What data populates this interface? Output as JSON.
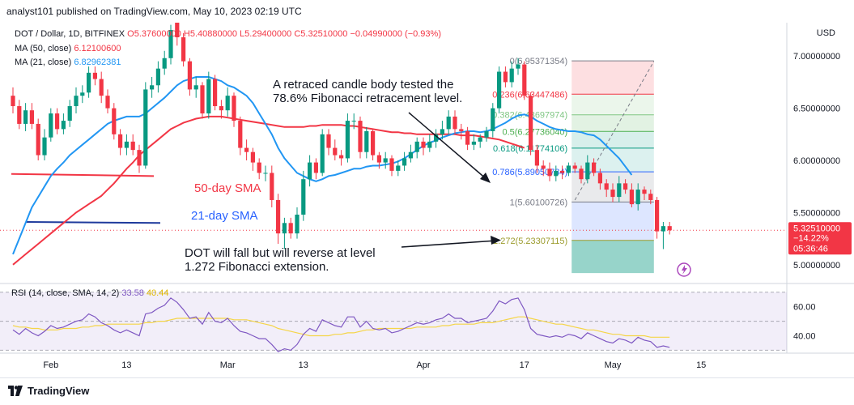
{
  "header": {
    "publisher": "analyst101 published on TradingView.com, May 10, 2023 02:19 UTC"
  },
  "ohlc": {
    "symbol": "DOT / Dollar, 1D, BITFINEX",
    "open": "O5.37600000",
    "high": "H5.40880000",
    "low": "L5.29400000",
    "close": "C5.32510000",
    "change": "−0.04990000 (−0.93%)"
  },
  "ma50": {
    "label": "MA (50, close)",
    "value": "6.12100600"
  },
  "ma21": {
    "label": "MA (21, close)",
    "value": "6.82962381"
  },
  "rsi_legend": {
    "label": "RSI (14, close, SMA, 14, 2)",
    "v1": "33.58",
    "v2": "40.44"
  },
  "price_axis": {
    "unit": "USD",
    "ticks": [
      "7.00000000",
      "6.50000000",
      "6.00000000",
      "5.50000000",
      "5.00000000"
    ],
    "current_price": "5.32510000",
    "current_change": "−14.22%",
    "countdown": "05:36:46"
  },
  "rsi_axis": {
    "ticks": [
      "60.00",
      "40.00"
    ]
  },
  "time_axis": {
    "ticks": [
      "Feb",
      "13",
      "Mar",
      "13",
      "Apr",
      "17",
      "May",
      "15"
    ]
  },
  "annotations": {
    "retrace_l1": "A retraced candle body tested the",
    "retrace_l2": "78.6% Fibonacci retracement level.",
    "sma50": "50-day SMA",
    "sma21": "21-day SMA",
    "fall_l1": "DOT  will fall but will reverse at level",
    "fall_l2": "1.272 Fibonacci extension."
  },
  "fib_levels": [
    {
      "label": "0(6.95371354)",
      "price": 6.95371354,
      "color": "#787b86"
    },
    {
      "label": "0.236(6.63447486)",
      "price": 6.63447486,
      "color": "#f23645"
    },
    {
      "label": "0.382(6.43697974)",
      "price": 6.43697974,
      "color": "#81c784"
    },
    {
      "label": "0.5(6.27736040)",
      "price": 6.2773604,
      "color": "#4caf50"
    },
    {
      "label": "0.618(6.11774106)",
      "price": 6.11774106,
      "color": "#089981"
    },
    {
      "label": "0.786(5.89050784)",
      "price": 5.89050784,
      "color": "#2962ff"
    },
    {
      "label": "1(5.60100726)",
      "price": 5.60100726,
      "color": "#787b86"
    },
    {
      "label": "1.272(5.23307115)",
      "price": 5.23307115,
      "color": "#9c9c2e"
    }
  ],
  "footer": {
    "brand": "TradingView"
  },
  "colors": {
    "up": "#089981",
    "down": "#f23645",
    "ma21": "#2196f3",
    "ma50": "#f23645",
    "rsi": "#7e57c2",
    "rsi_sma": "#f5d547"
  },
  "chart_data": {
    "type": "candlestick",
    "title": "DOT / Dollar, 1D, BITFINEX",
    "ylim": [
      4.82,
      7.32
    ],
    "rsi_ylim": [
      28,
      76
    ],
    "dates": [
      "2023-01-26",
      "2023-01-27",
      "2023-01-28",
      "2023-01-29",
      "2023-01-30",
      "2023-01-31",
      "2023-02-01",
      "2023-02-02",
      "2023-02-03",
      "2023-02-04",
      "2023-02-05",
      "2023-02-06",
      "2023-02-07",
      "2023-02-08",
      "2023-02-09",
      "2023-02-10",
      "2023-02-11",
      "2023-02-12",
      "2023-02-13",
      "2023-02-14",
      "2023-02-15",
      "2023-02-16",
      "2023-02-17",
      "2023-02-18",
      "2023-02-19",
      "2023-02-20",
      "2023-02-21",
      "2023-02-22",
      "2023-02-23",
      "2023-02-24",
      "2023-02-25",
      "2023-02-26",
      "2023-02-27",
      "2023-02-28",
      "2023-03-01",
      "2023-03-02",
      "2023-03-03",
      "2023-03-04",
      "2023-03-05",
      "2023-03-06",
      "2023-03-07",
      "2023-03-08",
      "2023-03-09",
      "2023-03-10",
      "2023-03-11",
      "2023-03-12",
      "2023-03-13",
      "2023-03-14",
      "2023-03-15",
      "2023-03-16",
      "2023-03-17",
      "2023-03-18",
      "2023-03-19",
      "2023-03-20",
      "2023-03-21",
      "2023-03-22",
      "2023-03-23",
      "2023-03-24",
      "2023-03-25",
      "2023-03-26",
      "2023-03-27",
      "2023-03-28",
      "2023-03-29",
      "2023-03-30",
      "2023-03-31",
      "2023-04-01",
      "2023-04-02",
      "2023-04-03",
      "2023-04-04",
      "2023-04-05",
      "2023-04-06",
      "2023-04-07",
      "2023-04-08",
      "2023-04-09",
      "2023-04-10",
      "2023-04-11",
      "2023-04-12",
      "2023-04-13",
      "2023-04-14",
      "2023-04-15",
      "2023-04-16",
      "2023-04-17",
      "2023-04-18",
      "2023-04-19",
      "2023-04-20",
      "2023-04-21",
      "2023-04-22",
      "2023-04-23",
      "2023-04-24",
      "2023-04-25",
      "2023-04-26",
      "2023-04-27",
      "2023-04-28",
      "2023-04-29",
      "2023-04-30",
      "2023-05-01",
      "2023-05-02",
      "2023-05-03",
      "2023-05-04",
      "2023-05-05",
      "2023-05-06",
      "2023-05-07",
      "2023-05-08",
      "2023-05-09",
      "2023-05-10"
    ],
    "open": [
      6.62,
      6.52,
      6.35,
      6.48,
      6.35,
      6.05,
      6.22,
      6.45,
      6.3,
      6.38,
      6.52,
      6.62,
      6.65,
      6.84,
      6.78,
      6.62,
      6.5,
      6.25,
      6.12,
      6.18,
      6.1,
      5.95,
      6.68,
      6.72,
      6.88,
      6.98,
      7.32,
      7.18,
      6.95,
      6.68,
      6.72,
      6.45,
      6.78,
      6.52,
      6.48,
      6.62,
      6.38,
      6.12,
      6.08,
      5.98,
      5.88,
      5.88,
      5.62,
      5.3,
      5.4,
      5.3,
      5.48,
      5.82,
      5.98,
      5.88,
      6.25,
      6.12,
      6.05,
      6.02,
      6.38,
      6.38,
      6.08,
      6.28,
      6.05,
      5.98,
      6.02,
      5.9,
      5.95,
      6.02,
      6.08,
      6.18,
      6.12,
      6.18,
      6.25,
      6.3,
      6.42,
      6.3,
      6.28,
      6.15,
      6.18,
      6.22,
      6.28,
      6.5,
      6.85,
      6.75,
      6.88,
      6.92,
      6.62,
      6.1,
      5.95,
      5.92,
      5.85,
      5.9,
      5.88,
      5.95,
      5.92,
      5.82,
      5.98,
      5.88,
      5.78,
      5.72,
      5.65,
      5.78,
      5.72,
      5.58,
      5.72,
      5.68,
      5.62,
      5.32,
      5.37
    ],
    "close": [
      6.52,
      6.35,
      6.48,
      6.35,
      6.05,
      6.22,
      6.45,
      6.3,
      6.38,
      6.52,
      6.62,
      6.65,
      6.84,
      6.78,
      6.62,
      6.5,
      6.25,
      6.12,
      6.18,
      6.1,
      5.95,
      6.68,
      6.72,
      6.88,
      6.98,
      7.25,
      7.18,
      6.95,
      6.68,
      6.72,
      6.45,
      6.78,
      6.52,
      6.48,
      6.62,
      6.38,
      6.12,
      6.08,
      5.98,
      5.88,
      5.88,
      5.62,
      5.3,
      5.4,
      5.3,
      5.48,
      5.82,
      5.98,
      5.88,
      6.25,
      6.12,
      6.05,
      6.02,
      6.38,
      6.38,
      6.08,
      6.28,
      6.05,
      5.98,
      6.02,
      5.9,
      5.95,
      6.02,
      6.08,
      6.18,
      6.12,
      6.18,
      6.25,
      6.3,
      6.42,
      6.3,
      6.28,
      6.15,
      6.18,
      6.22,
      6.28,
      6.5,
      6.85,
      6.75,
      6.88,
      6.92,
      6.62,
      6.1,
      5.95,
      5.92,
      5.85,
      5.9,
      5.88,
      5.95,
      5.92,
      5.82,
      5.98,
      5.88,
      5.78,
      5.72,
      5.65,
      5.78,
      5.72,
      5.58,
      5.72,
      5.68,
      5.62,
      5.32,
      5.37,
      5.33
    ],
    "high": [
      6.7,
      6.58,
      6.55,
      6.55,
      6.4,
      6.3,
      6.5,
      6.5,
      6.45,
      6.58,
      6.7,
      6.72,
      6.9,
      6.9,
      6.85,
      6.68,
      6.55,
      6.3,
      6.25,
      6.25,
      6.15,
      6.75,
      6.8,
      6.95,
      7.05,
      7.3,
      7.35,
      7.22,
      6.98,
      6.8,
      6.75,
      6.85,
      6.82,
      6.58,
      6.7,
      6.65,
      6.42,
      6.2,
      6.12,
      6.02,
      5.95,
      5.95,
      5.68,
      5.45,
      5.45,
      5.55,
      5.9,
      6.05,
      6.02,
      6.3,
      6.3,
      6.2,
      6.1,
      6.45,
      6.45,
      6.42,
      6.32,
      6.3,
      6.08,
      6.08,
      6.05,
      6.0,
      6.08,
      6.15,
      6.22,
      6.22,
      6.25,
      6.3,
      6.38,
      6.48,
      6.48,
      6.35,
      6.32,
      6.25,
      6.25,
      6.32,
      6.55,
      6.9,
      6.9,
      6.95,
      6.98,
      6.95,
      6.65,
      6.15,
      6.0,
      5.98,
      5.95,
      5.95,
      5.98,
      5.98,
      5.95,
      6.05,
      6.02,
      5.92,
      5.82,
      5.78,
      5.85,
      5.82,
      5.78,
      5.78,
      5.75,
      5.72,
      5.65,
      5.41,
      5.41
    ],
    "low": [
      6.45,
      6.3,
      6.28,
      6.3,
      6.0,
      6.0,
      6.18,
      6.25,
      6.25,
      6.32,
      6.45,
      6.55,
      6.6,
      6.72,
      6.55,
      6.45,
      6.2,
      6.05,
      6.05,
      6.05,
      5.88,
      5.92,
      6.6,
      6.65,
      6.82,
      6.92,
      7.1,
      6.9,
      6.62,
      6.6,
      6.4,
      6.4,
      6.48,
      6.4,
      6.42,
      6.32,
      6.05,
      6.0,
      5.9,
      5.82,
      5.8,
      5.55,
      5.2,
      5.15,
      5.25,
      5.25,
      5.42,
      5.75,
      5.82,
      5.85,
      6.05,
      6.0,
      5.95,
      5.98,
      6.3,
      6.02,
      6.02,
      6.0,
      5.92,
      5.92,
      5.85,
      5.85,
      5.9,
      5.98,
      6.02,
      6.05,
      6.08,
      6.12,
      6.2,
      6.25,
      6.25,
      6.2,
      6.1,
      6.1,
      6.12,
      6.18,
      6.22,
      6.45,
      6.7,
      6.7,
      6.82,
      6.58,
      6.05,
      5.88,
      5.85,
      5.8,
      5.8,
      5.82,
      5.85,
      5.88,
      5.78,
      5.78,
      5.85,
      5.72,
      5.65,
      5.6,
      5.6,
      5.68,
      5.55,
      5.52,
      5.62,
      5.58,
      5.25,
      5.15,
      5.29
    ],
    "ma21": [
      5.1,
      5.25,
      5.4,
      5.55,
      5.65,
      5.75,
      5.85,
      5.92,
      5.98,
      6.05,
      6.1,
      6.15,
      6.2,
      6.25,
      6.3,
      6.35,
      6.38,
      6.4,
      6.42,
      6.42,
      6.42,
      6.45,
      6.5,
      6.55,
      6.6,
      6.66,
      6.72,
      6.76,
      6.78,
      6.8,
      6.8,
      6.8,
      6.78,
      6.76,
      6.72,
      6.7,
      6.66,
      6.62,
      6.55,
      6.45,
      6.35,
      6.25,
      6.12,
      6.02,
      5.95,
      5.88,
      5.85,
      5.82,
      5.8,
      5.82,
      5.85,
      5.86,
      5.88,
      5.9,
      5.92,
      5.92,
      5.94,
      5.95,
      5.95,
      5.96,
      5.97,
      5.99,
      6.02,
      6.06,
      6.1,
      6.14,
      6.17,
      6.19,
      6.22,
      6.24,
      6.26,
      6.27,
      6.28,
      6.28,
      6.27,
      6.28,
      6.3,
      6.33,
      6.36,
      6.4,
      6.43,
      6.44,
      6.42,
      6.38,
      6.35,
      6.32,
      6.3,
      6.29,
      6.28,
      6.28,
      6.27,
      6.25,
      6.24,
      6.2,
      6.14,
      6.08,
      6.02,
      5.94,
      5.86
    ],
    "ma50": [
      5.0,
      5.05,
      5.1,
      5.15,
      5.2,
      5.25,
      5.3,
      5.35,
      5.4,
      5.45,
      5.5,
      5.54,
      5.58,
      5.62,
      5.66,
      5.72,
      5.78,
      5.85,
      5.92,
      5.98,
      6.05,
      6.1,
      6.15,
      6.2,
      6.25,
      6.3,
      6.33,
      6.36,
      6.38,
      6.4,
      6.41,
      6.42,
      6.42,
      6.42,
      6.41,
      6.4,
      6.39,
      6.38,
      6.37,
      6.36,
      6.35,
      6.34,
      6.33,
      6.32,
      6.32,
      6.32,
      6.32,
      6.33,
      6.33,
      6.34,
      6.34,
      6.34,
      6.34,
      6.33,
      6.33,
      6.32,
      6.31,
      6.3,
      6.29,
      6.28,
      6.27,
      6.27,
      6.26,
      6.26,
      6.25,
      6.25,
      6.25,
      6.25,
      6.25,
      6.25,
      6.25,
      6.24,
      6.24,
      6.24,
      6.23,
      6.22,
      6.21,
      6.2,
      6.18,
      6.16,
      6.14,
      6.12
    ],
    "rsi": [
      44,
      41,
      45,
      42,
      40,
      43,
      47,
      45,
      46,
      48,
      50,
      51,
      55,
      53,
      49,
      47,
      44,
      42,
      44,
      42,
      40,
      55,
      56,
      59,
      61,
      66,
      63,
      58,
      52,
      53,
      48,
      56,
      50,
      49,
      52,
      47,
      43,
      42,
      40,
      38,
      38,
      34,
      29,
      31,
      30,
      34,
      41,
      45,
      43,
      51,
      49,
      47,
      46,
      53,
      53,
      46,
      50,
      45,
      44,
      45,
      42,
      43,
      45,
      47,
      49,
      48,
      49,
      51,
      52,
      55,
      52,
      52,
      49,
      50,
      51,
      52,
      57,
      64,
      62,
      65,
      66,
      58,
      45,
      41,
      40,
      39,
      40,
      39,
      41,
      40,
      38,
      42,
      40,
      38,
      36,
      35,
      38,
      37,
      35,
      39,
      37,
      36,
      32,
      33,
      32
    ],
    "rsi_sma": [
      47,
      46,
      46,
      45,
      45,
      44,
      44,
      44,
      45,
      45,
      45,
      46,
      46,
      47,
      47,
      48,
      48,
      48,
      48,
      48,
      48,
      49,
      49,
      50,
      50,
      51,
      52,
      52,
      52,
      52,
      52,
      52,
      52,
      52,
      52,
      51,
      51,
      51,
      50,
      49,
      48,
      47,
      45,
      44,
      43,
      42,
      41,
      40,
      40,
      40,
      40,
      41,
      41,
      42,
      42,
      43,
      44,
      44,
      45,
      45,
      45,
      45,
      45,
      45,
      46,
      46,
      46,
      46,
      47,
      47,
      48,
      48,
      48,
      48,
      49,
      49,
      49,
      50,
      51,
      52,
      53,
      53,
      52,
      51,
      50,
      49,
      48,
      48,
      47,
      46,
      45,
      44,
      44,
      43,
      42,
      41,
      41,
      40,
      40,
      40,
      40,
      39,
      39,
      39,
      39
    ],
    "fib_range": {
      "start_date": "2023-04-25",
      "end_date": "2023-05-07"
    }
  }
}
